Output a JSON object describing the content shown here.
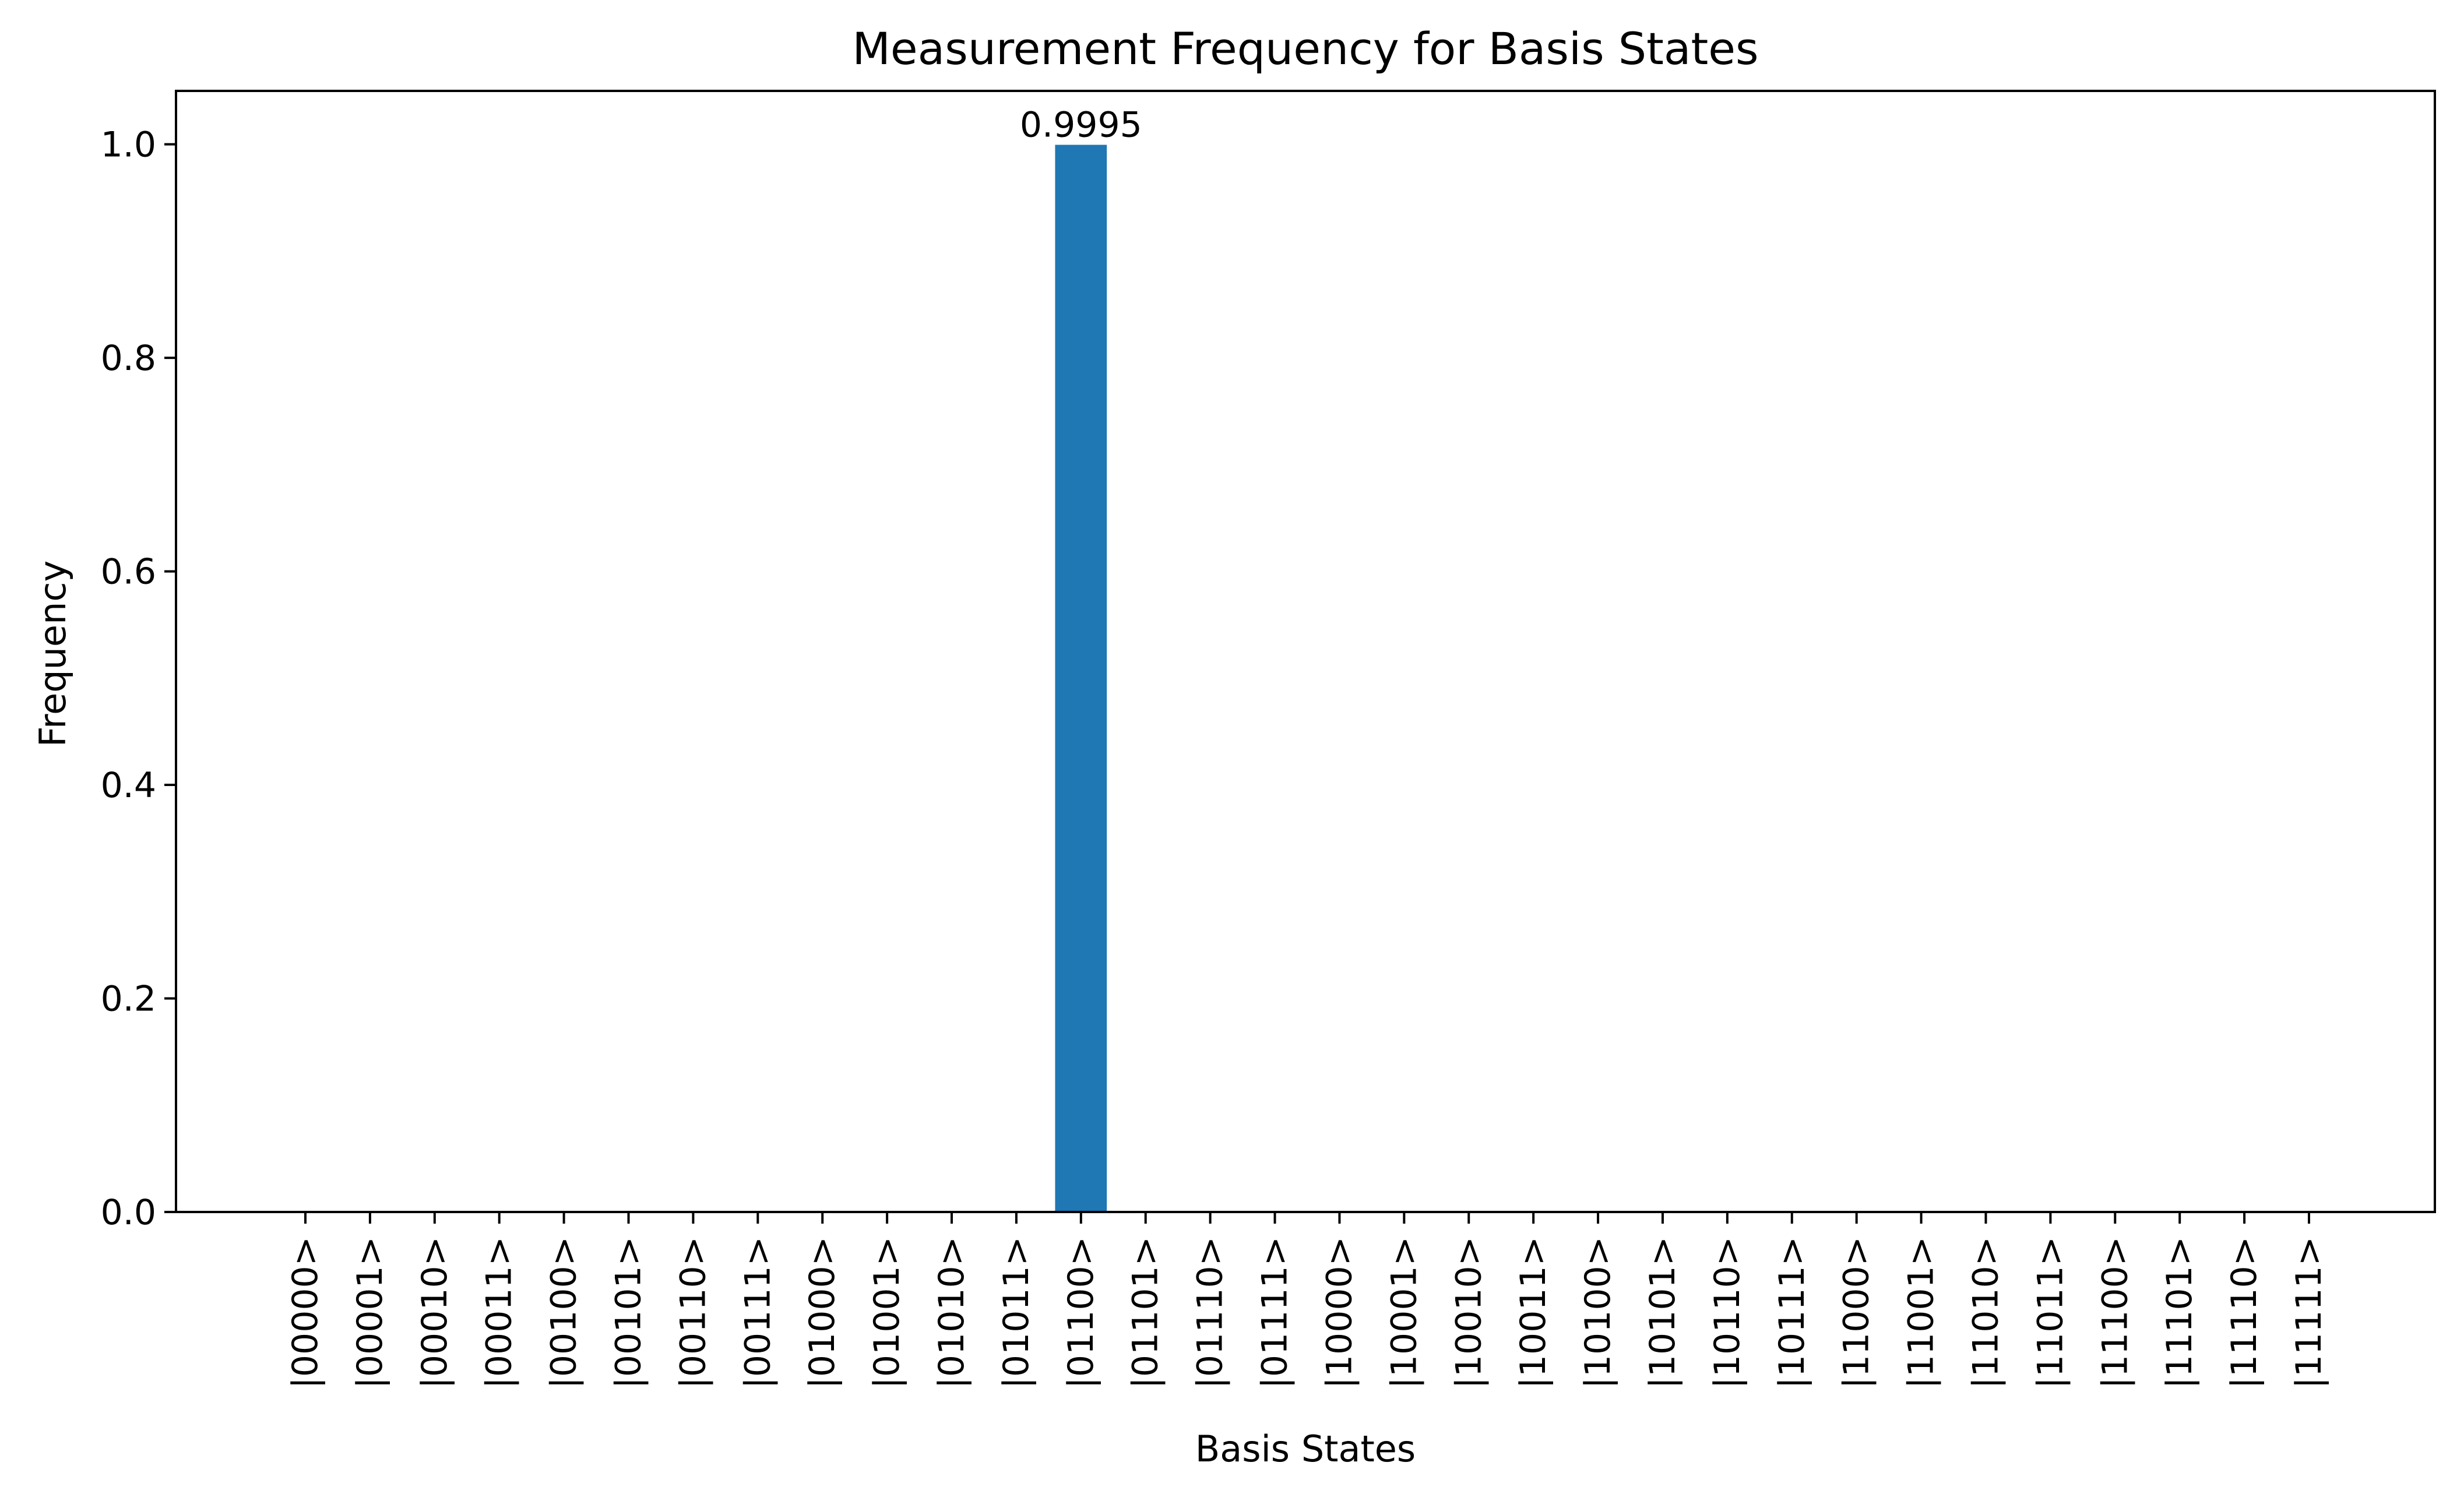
{
  "chart_data": {
    "type": "bar",
    "title": "Measurement Frequency for Basis States",
    "xlabel": "Basis States",
    "ylabel": "Frequency",
    "categories": [
      "|00000>",
      "|00001>",
      "|00010>",
      "|00011>",
      "|00100>",
      "|00101>",
      "|00110>",
      "|00111>",
      "|01000>",
      "|01001>",
      "|01010>",
      "|01011>",
      "|01100>",
      "|01101>",
      "|01110>",
      "|01111>",
      "|10000>",
      "|10001>",
      "|10010>",
      "|10011>",
      "|10100>",
      "|10101>",
      "|10110>",
      "|10111>",
      "|11000>",
      "|11001>",
      "|11010>",
      "|11011>",
      "|11100>",
      "|11101>",
      "|11110>",
      "|11111>"
    ],
    "values": [
      0,
      0,
      0,
      0,
      0,
      0,
      0,
      0,
      0,
      0,
      0,
      0,
      0.9995,
      0,
      0,
      0,
      0,
      0,
      0,
      0,
      0,
      0,
      0,
      0,
      0,
      0,
      0,
      0,
      0,
      0,
      0,
      0
    ],
    "data_labels": [
      {
        "category": "|01100>",
        "text": "0.9995"
      }
    ],
    "ylim": [
      0,
      1.05
    ],
    "yticks": [
      0.0,
      0.2,
      0.4,
      0.6,
      0.8,
      1.0
    ],
    "ytick_labels": [
      "0.0",
      "0.2",
      "0.4",
      "0.6",
      "0.8",
      "1.0"
    ],
    "bar_color": "#1f77b4",
    "grid": false,
    "legend": "none"
  }
}
